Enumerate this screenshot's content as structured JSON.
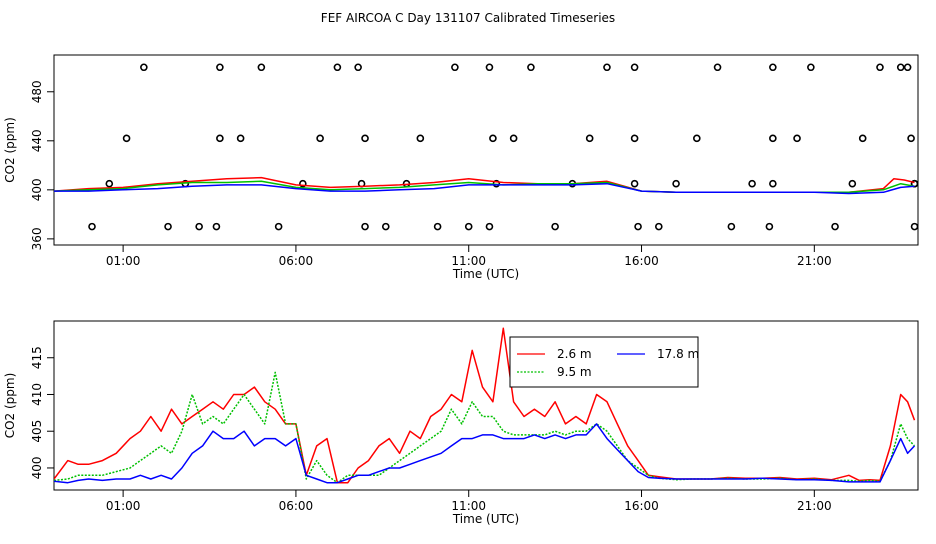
{
  "figure": {
    "title": "FEF AIRCOA C  Day 131107  Calibrated Timeseries"
  },
  "chart_data": [
    {
      "type": "line",
      "xlabel": "Time (UTC)",
      "ylabel": "CO2 (ppm)",
      "x_unit": "hours UTC",
      "xlim": [
        -1,
        24
      ],
      "ylim": [
        355,
        510
      ],
      "x_ticks": [
        1,
        6,
        11,
        16,
        21
      ],
      "x_tick_labels": [
        "01:00",
        "06:00",
        "11:00",
        "16:00",
        "21:00"
      ],
      "y_ticks": [
        360,
        400,
        440,
        480
      ],
      "y_tick_labels": [
        "360",
        "400",
        "440",
        "480"
      ],
      "grid": false,
      "legend": "none",
      "series": [
        {
          "color": "#ff0000",
          "x": [
            -1,
            0,
            1,
            2,
            3,
            4,
            5,
            6,
            7,
            8,
            9,
            10,
            11,
            12,
            13,
            14,
            15,
            16,
            17,
            18,
            19,
            20,
            21,
            22,
            23,
            23.3,
            23.6,
            23.9
          ],
          "values": [
            399,
            401,
            402,
            405,
            407,
            409,
            410,
            404,
            402,
            403,
            404,
            406,
            409,
            406,
            405,
            405,
            407,
            399,
            398,
            398,
            398,
            398,
            398,
            398,
            401,
            409,
            408,
            406
          ]
        },
        {
          "color": "#00c000",
          "x": [
            -1,
            0,
            1,
            2,
            3,
            4,
            5,
            6,
            7,
            8,
            9,
            10,
            11,
            12,
            13,
            14,
            15,
            16,
            17,
            18,
            19,
            20,
            21,
            22,
            23,
            23.5,
            23.9
          ],
          "values": [
            399,
            400,
            401,
            404,
            406,
            406,
            407,
            402,
            400,
            401,
            402,
            404,
            406,
            404,
            405,
            405,
            406,
            399,
            398,
            398,
            398,
            398,
            398,
            398,
            400,
            405,
            403
          ]
        },
        {
          "color": "#0000ff",
          "x": [
            -1,
            0,
            1,
            2,
            3,
            4,
            5,
            6,
            7,
            8,
            9,
            10,
            11,
            12,
            13,
            14,
            15,
            16,
            17,
            18,
            19,
            20,
            21,
            22,
            23,
            23.5,
            23.9
          ],
          "values": [
            399,
            399,
            400,
            401,
            403,
            404,
            404,
            401,
            399,
            399,
            400,
            401,
            404,
            404,
            404,
            404,
            405,
            399,
            398,
            398,
            398,
            398,
            398,
            397,
            398,
            402,
            403
          ]
        }
      ],
      "points": {
        "marker": "open-circle",
        "color": "#000000",
        "x": [
          0.1,
          0.6,
          1.1,
          1.6,
          2.3,
          2.8,
          3.2,
          3.8,
          3.8,
          3.7,
          4.4,
          5.0,
          5.5,
          6.2,
          6.7,
          7.2,
          7.8,
          8.0,
          7.9,
          8.0,
          8.6,
          9.2,
          9.6,
          10.1,
          10.6,
          11.0,
          11.6,
          11.7,
          11.8,
          11.6,
          12.3,
          12.8,
          13.5,
          14.0,
          14.5,
          15.0,
          15.8,
          15.8,
          15.8,
          15.9,
          16.5,
          17.0,
          17.6,
          18.2,
          18.6,
          19.2,
          19.8,
          19.8,
          19.8,
          19.7,
          20.5,
          20.9,
          21.6,
          22.1,
          22.4,
          22.9,
          23.5,
          23.7,
          23.8,
          23.9,
          23.9,
          23.9
        ],
        "values": [
          370,
          405,
          442,
          500,
          370,
          405,
          370,
          442,
          500,
          370,
          442,
          500,
          370,
          405,
          442,
          500,
          500,
          442,
          405,
          370,
          370,
          405,
          442,
          370,
          500,
          370,
          500,
          442,
          405,
          370,
          442,
          500,
          370,
          405,
          442,
          500,
          500,
          442,
          405,
          370,
          370,
          405,
          442,
          500,
          370,
          405,
          500,
          442,
          405,
          370,
          442,
          500,
          370,
          405,
          442,
          500,
          500,
          500,
          442,
          405,
          370,
          405
        ]
      }
    },
    {
      "type": "line",
      "xlabel": "Time (UTC)",
      "ylabel": "CO2 (ppm)",
      "x_unit": "hours UTC",
      "xlim": [
        -1,
        24
      ],
      "ylim": [
        397,
        420
      ],
      "x_ticks": [
        1,
        6,
        11,
        16,
        21
      ],
      "x_tick_labels": [
        "01:00",
        "06:00",
        "11:00",
        "16:00",
        "21:00"
      ],
      "y_ticks": [
        400,
        405,
        410,
        415
      ],
      "y_tick_labels": [
        "400",
        "405",
        "410",
        "415"
      ],
      "grid": false,
      "legend": "top-center",
      "series": [
        {
          "name": "2.6 m",
          "color": "#ff0000",
          "dash": "",
          "x": [
            -1,
            -0.6,
            -0.3,
            0,
            0.4,
            0.8,
            1.2,
            1.5,
            1.8,
            2.1,
            2.4,
            2.7,
            3.0,
            3.3,
            3.6,
            3.9,
            4.2,
            4.5,
            4.8,
            5.1,
            5.4,
            5.7,
            6.0,
            6.3,
            6.6,
            6.9,
            7.2,
            7.5,
            7.8,
            8.1,
            8.4,
            8.7,
            9.0,
            9.3,
            9.6,
            9.9,
            10.2,
            10.5,
            10.8,
            11.1,
            11.4,
            11.7,
            12.0,
            12.3,
            12.6,
            12.9,
            13.2,
            13.5,
            13.8,
            14.1,
            14.4,
            14.7,
            15.0,
            15.3,
            15.6,
            15.9,
            16.2,
            16.5,
            17,
            17.5,
            18,
            18.5,
            19,
            19.5,
            20,
            20.5,
            21,
            21.5,
            22,
            22.3,
            22.6,
            22.9,
            23.2,
            23.5,
            23.7,
            23.9
          ],
          "values": [
            398.5,
            401,
            400.5,
            400.5,
            401,
            402,
            404,
            405,
            407,
            405,
            408,
            406,
            407,
            408,
            409,
            408,
            410,
            410,
            411,
            409,
            408,
            406,
            406,
            399,
            403,
            404,
            398,
            398,
            400,
            401,
            403,
            404,
            402,
            405,
            404,
            407,
            408,
            410,
            409,
            416,
            411,
            409,
            419,
            409,
            407,
            408,
            407,
            409,
            406,
            407,
            406,
            410,
            409,
            406,
            403,
            401,
            399,
            398.8,
            398.5,
            398.5,
            398.5,
            398.7,
            398.6,
            398.6,
            398.7,
            398.5,
            398.6,
            398.4,
            399,
            398.3,
            398.4,
            398.3,
            403,
            410,
            409,
            406.5
          ]
        },
        {
          "name": "9.5 m",
          "color": "#00c000",
          "dash": "2,1.5",
          "x": [
            -1,
            -0.6,
            -0.3,
            0,
            0.4,
            0.8,
            1.2,
            1.5,
            1.8,
            2.1,
            2.4,
            2.7,
            3.0,
            3.3,
            3.6,
            3.9,
            4.2,
            4.5,
            4.8,
            5.1,
            5.4,
            5.7,
            6.0,
            6.3,
            6.6,
            6.9,
            7.2,
            7.5,
            7.8,
            8.1,
            8.4,
            8.7,
            9.0,
            9.3,
            9.6,
            9.9,
            10.2,
            10.5,
            10.8,
            11.1,
            11.4,
            11.7,
            12.0,
            12.3,
            12.6,
            12.9,
            13.2,
            13.5,
            13.8,
            14.1,
            14.4,
            14.7,
            15.0,
            15.3,
            15.6,
            15.9,
            16.2,
            16.5,
            17,
            17.5,
            18,
            18.5,
            19,
            19.5,
            20,
            20.5,
            21,
            21.5,
            22,
            22.3,
            22.6,
            22.9,
            23.2,
            23.5,
            23.7,
            23.9
          ],
          "values": [
            398.3,
            398.5,
            399,
            399,
            399,
            399.5,
            400,
            401,
            402,
            403,
            402,
            405,
            410,
            406,
            407,
            406,
            408,
            410,
            408,
            406,
            413,
            406,
            406,
            398.5,
            401,
            399,
            398,
            399,
            399,
            399,
            399,
            400,
            401,
            402,
            403,
            404,
            405,
            408,
            406,
            409,
            407,
            407,
            405,
            404.5,
            404.5,
            404.5,
            404.5,
            405,
            404.5,
            405,
            405,
            406,
            405,
            403,
            401,
            400,
            399,
            398.6,
            398.4,
            398.5,
            398.5,
            398.6,
            398.5,
            398.5,
            398.6,
            398.4,
            398.5,
            398.3,
            398.3,
            398.2,
            398.3,
            398.2,
            401,
            406,
            404,
            403
          ]
        },
        {
          "name": "17.8 m",
          "color": "#0000ff",
          "dash": "",
          "x": [
            -1,
            -0.6,
            -0.3,
            0,
            0.4,
            0.8,
            1.2,
            1.5,
            1.8,
            2.1,
            2.4,
            2.7,
            3.0,
            3.3,
            3.6,
            3.9,
            4.2,
            4.5,
            4.8,
            5.1,
            5.4,
            5.7,
            6.0,
            6.3,
            6.6,
            6.9,
            7.2,
            7.5,
            7.8,
            8.1,
            8.4,
            8.7,
            9.0,
            9.3,
            9.6,
            9.9,
            10.2,
            10.5,
            10.8,
            11.1,
            11.4,
            11.7,
            12.0,
            12.3,
            12.6,
            12.9,
            13.2,
            13.5,
            13.8,
            14.1,
            14.4,
            14.7,
            15.0,
            15.3,
            15.6,
            15.9,
            16.2,
            16.5,
            17,
            17.5,
            18,
            18.5,
            19,
            19.5,
            20,
            20.5,
            21,
            21.5,
            22,
            22.3,
            22.6,
            22.9,
            23.2,
            23.5,
            23.7,
            23.9
          ],
          "values": [
            398.2,
            398,
            398.3,
            398.5,
            398.3,
            398.5,
            398.5,
            399,
            398.5,
            399,
            398.5,
            400,
            402,
            403,
            405,
            404,
            404,
            405,
            403,
            404,
            404,
            403,
            404,
            399,
            398.5,
            398,
            398,
            398.5,
            399,
            399,
            399.5,
            400,
            400,
            400.5,
            401,
            401.5,
            402,
            403,
            404,
            404,
            404.5,
            404.5,
            404,
            404,
            404,
            404.5,
            404,
            404.5,
            404,
            404.5,
            404.5,
            406,
            404,
            402.5,
            401,
            399.5,
            398.7,
            398.6,
            398.5,
            398.5,
            398.5,
            398.5,
            398.5,
            398.6,
            398.5,
            398.4,
            398.4,
            398.3,
            398.1,
            398.1,
            398.1,
            398.1,
            401,
            404,
            402,
            403
          ]
        }
      ]
    }
  ]
}
